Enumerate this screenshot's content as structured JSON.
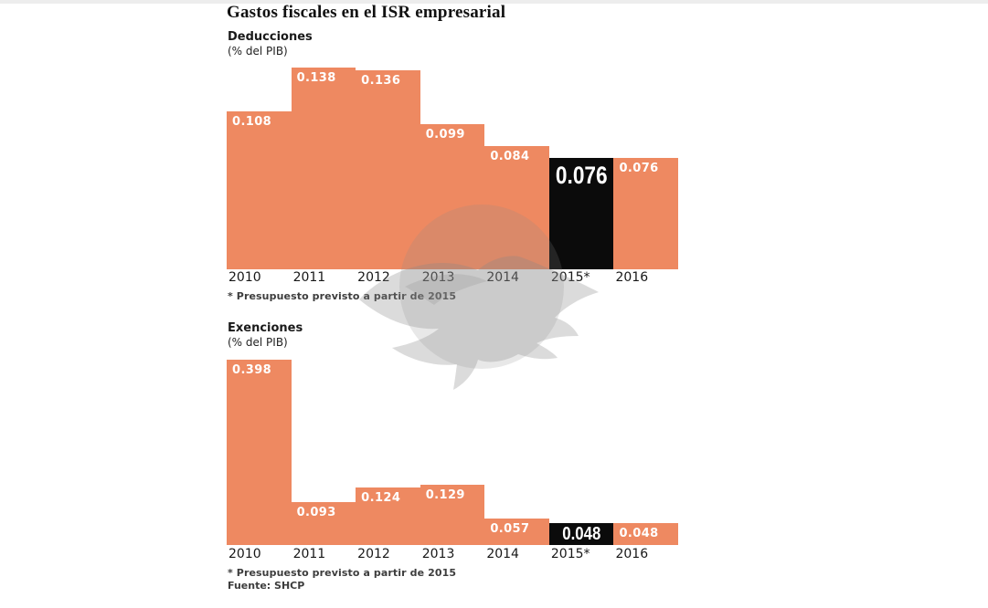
{
  "header": {
    "title": "Gastos fiscales en el ISR empresarial"
  },
  "colors": {
    "bar": "#EE8961",
    "highlight_bar": "#0B0B0B",
    "bar_label": "#FFFFFF",
    "watermark_gray": "#8C8C8C"
  },
  "watermark": {
    "icon": "eagle-globe-watermark"
  },
  "chart_data": [
    {
      "type": "bar",
      "title": "Deducciones",
      "unit_label": "(% del PIB)",
      "categories": [
        "2010",
        "2011",
        "2012",
        "2013",
        "2014",
        "2015*",
        "2016"
      ],
      "values": [
        0.108,
        0.138,
        0.136,
        0.099,
        0.084,
        0.076,
        0.076
      ],
      "value_labels": [
        "0.108",
        "0.138",
        "0.136",
        "0.099",
        "0.084",
        "0.076",
        "0.076"
      ],
      "highlight_index": 5,
      "ylim": [
        0,
        0.138
      ],
      "grid": false,
      "legend": "none",
      "footnote": "* Presupuesto previsto a partir de 2015"
    },
    {
      "type": "bar",
      "title": "Exenciones",
      "unit_label": "(% del PIB)",
      "categories": [
        "2010",
        "2011",
        "2012",
        "2013",
        "2014",
        "2015*",
        "2016"
      ],
      "values": [
        0.398,
        0.093,
        0.124,
        0.129,
        0.057,
        0.048,
        0.048
      ],
      "value_labels": [
        "0.398",
        "0.093",
        "0.124",
        "0.129",
        "0.057",
        "0.048",
        "0.048"
      ],
      "highlight_index": 5,
      "ylim": [
        0,
        0.398
      ],
      "grid": false,
      "legend": "none",
      "footnote": "* Presupuesto previsto a partir de 2015",
      "source": "Fuente: SHCP"
    }
  ]
}
